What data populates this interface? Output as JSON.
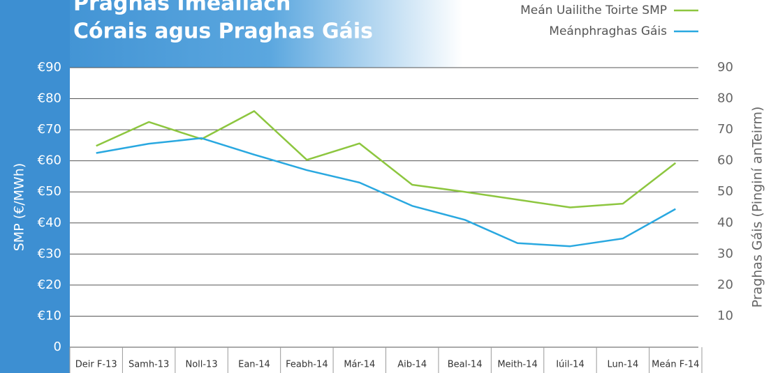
{
  "chart_data": {
    "type": "line",
    "title": [
      "Praghas Imeallach",
      "Córais agus Praghas Gáis"
    ],
    "y_label": "SMP (€/MWh)",
    "y2_label": "Praghas Gáis (Pinginí anTeirm)",
    "categories": [
      "Deir F-13",
      "Samh-13",
      "Noll-13",
      "Ean-14",
      "Feabh-14",
      "Már-14",
      "Aib-14",
      "Beal-14",
      "Meith-14",
      "Iúil-14",
      "Lun-14",
      "Meán F-14"
    ],
    "series": [
      {
        "name": "Meán Uailithe Toirte SMP",
        "color": "#8dc63f",
        "values": [
          64.8,
          72.5,
          67,
          76,
          60.3,
          65.6,
          52.3,
          50,
          47.5,
          45,
          46.2,
          59.3
        ]
      },
      {
        "name": "Meánphraghas Gáis",
        "color": "#29a8e0",
        "axis": "y2",
        "values": [
          62.5,
          65.5,
          67.3,
          62,
          57,
          53,
          45.5,
          41,
          33.5,
          32.5,
          35,
          44.5
        ]
      }
    ],
    "ylim": [
      0,
      90
    ],
    "yticks": [
      0,
      {
        "value": 10,
        "label": "€10"
      },
      {
        "value": 20,
        "label": "€20"
      },
      {
        "value": 30,
        "label": "€30"
      },
      {
        "value": 40,
        "label": "€40"
      },
      {
        "value": 50,
        "label": "€50"
      },
      {
        "value": 60,
        "label": "€60"
      },
      {
        "value": 70,
        "label": "€70"
      },
      {
        "value": 80,
        "label": "€80"
      },
      {
        "value": 90,
        "label": "€90"
      }
    ],
    "y2lim": [
      0,
      90
    ],
    "y2ticks": [
      10,
      20,
      30,
      40,
      50,
      60,
      70,
      80,
      90
    ],
    "grid": true,
    "legend": "top-right"
  }
}
